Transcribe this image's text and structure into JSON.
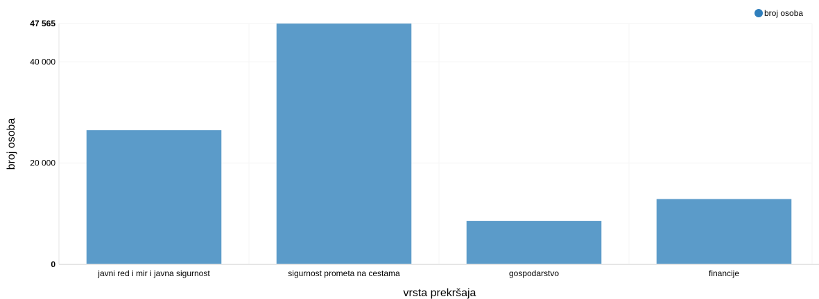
{
  "chart_data": {
    "type": "bar",
    "title": "",
    "xlabel": "vrsta prekršaja",
    "ylabel": "broj osoba",
    "categories": [
      "javni red i mir i javna sigurnost",
      "sigurnost prometa na cestama",
      "gospodarstvo",
      "financije"
    ],
    "series": [
      {
        "name": "broj osoba",
        "values": [
          26500,
          47565,
          8600,
          12900
        ]
      }
    ],
    "ylim": [
      0,
      47565
    ],
    "yticks": [
      {
        "value": 0,
        "label": "0",
        "bold": true
      },
      {
        "value": 20000,
        "label": "20 000",
        "bold": false
      },
      {
        "value": 40000,
        "label": "40 000",
        "bold": false
      },
      {
        "value": 47565,
        "label": "47 565",
        "bold": true
      }
    ],
    "grid": true,
    "legend": "top-right",
    "bar_color": "#5b9bc9",
    "legend_color": "#2f7ebc"
  }
}
